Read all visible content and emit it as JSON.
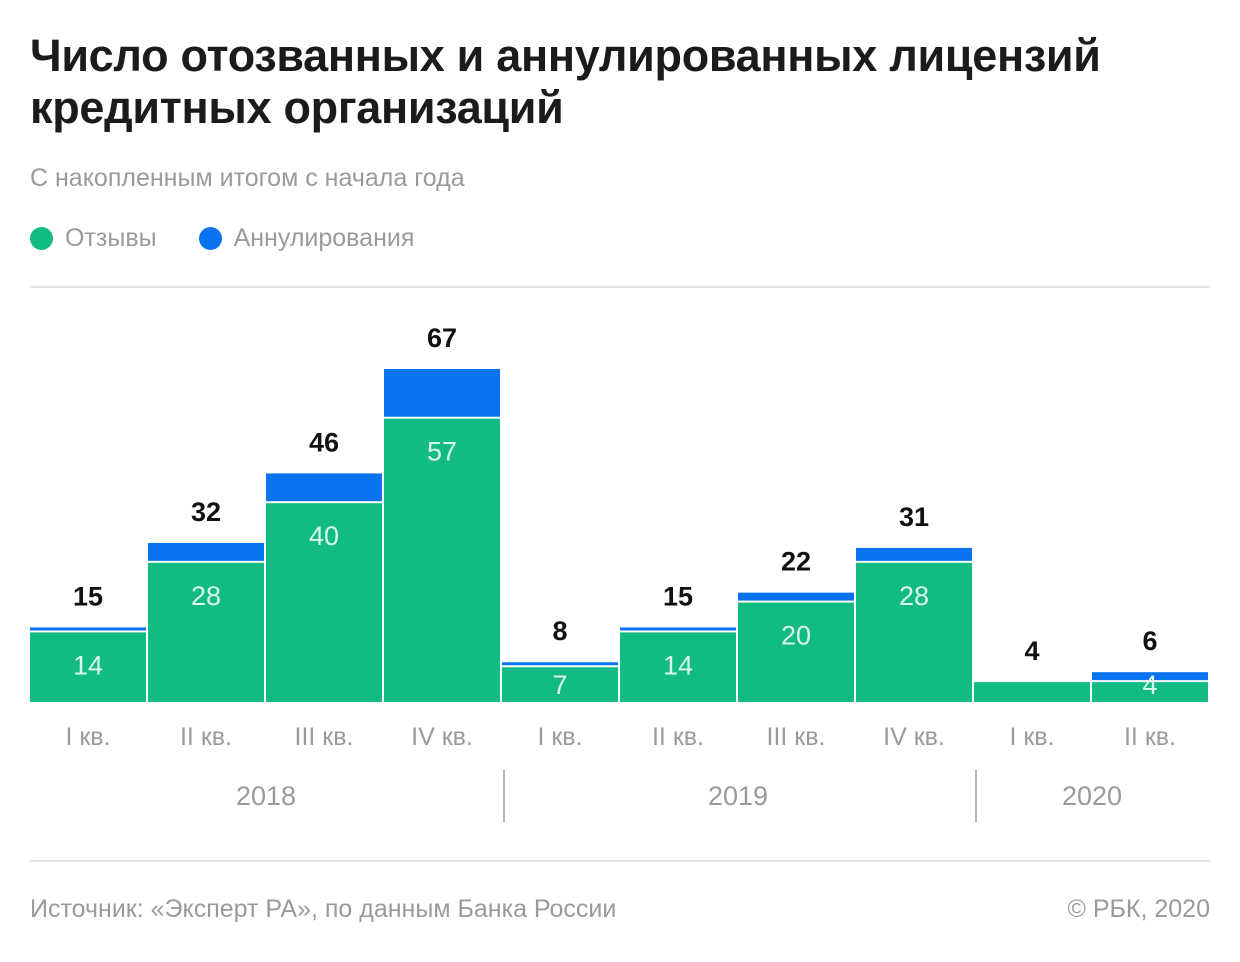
{
  "header": {
    "title": "Число отозванных и аннулированных лицензий кредитных организаций",
    "subtitle": "С накопленным итогом с начала года"
  },
  "legend": [
    {
      "label": "Отзывы",
      "color": "#13bb84"
    },
    {
      "label": "Аннулирования",
      "color": "#0a74f0"
    }
  ],
  "footer": {
    "source": "Источник: «Эксперт РА», по данным Банка России",
    "copyright": "© РБК, 2020"
  },
  "chart_data": {
    "type": "bar",
    "stacked": true,
    "title": "Число отозванных и аннулированных лицензий кредитных организаций",
    "subtitle": "С накопленным итогом с начала года",
    "xlabel": "",
    "ylabel": "",
    "ylim": [
      0,
      67
    ],
    "grid": false,
    "legend_position": "top-left",
    "categories": [
      "I кв.",
      "II кв.",
      "III кв.",
      "IV кв.",
      "I кв.",
      "II кв.",
      "III кв.",
      "IV кв.",
      "I кв.",
      "II кв."
    ],
    "groups": [
      {
        "label": "2018",
        "count": 4
      },
      {
        "label": "2019",
        "count": 4
      },
      {
        "label": "2020",
        "count": 2
      }
    ],
    "series": [
      {
        "name": "Отзывы",
        "color": "#13bb84",
        "values": [
          14,
          28,
          40,
          57,
          7,
          14,
          20,
          28,
          4,
          4
        ]
      },
      {
        "name": "Аннулирования",
        "color": "#0a74f0",
        "values": [
          1,
          4,
          6,
          10,
          1,
          1,
          2,
          3,
          0,
          2
        ]
      }
    ],
    "totals": [
      15,
      32,
      46,
      67,
      8,
      15,
      22,
      31,
      4,
      6
    ],
    "inner_labels": [
      "14",
      "28",
      "40",
      "57",
      "7",
      "14",
      "20",
      "28",
      "",
      "4"
    ]
  }
}
